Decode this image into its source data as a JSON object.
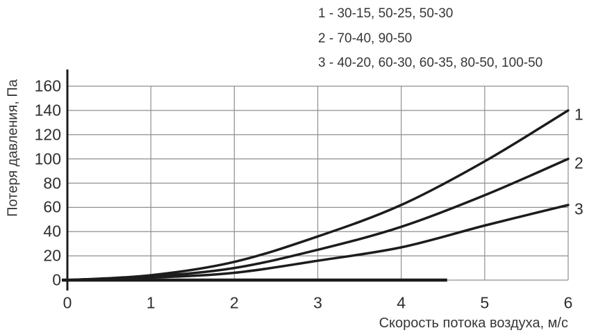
{
  "chart_data": {
    "type": "line",
    "title": "",
    "xlabel": "Скорость потока воздуха, м/с",
    "ylabel": "Потеря давления, Па",
    "xlim": [
      0,
      6
    ],
    "ylim": [
      0,
      160
    ],
    "x_ticks": [
      "0",
      "1",
      "2",
      "3",
      "4",
      "5",
      "6"
    ],
    "y_ticks": [
      "0",
      "20",
      "40",
      "60",
      "80",
      "100",
      "120",
      "140",
      "160"
    ],
    "grid": true,
    "legend_position": "top-right",
    "x": [
      0,
      1,
      2,
      3,
      4,
      5,
      6
    ],
    "series": [
      {
        "name": "1",
        "label": "1 - 30-15, 50-25, 50-30",
        "values": [
          0,
          4,
          15,
          36,
          62,
          98,
          140
        ]
      },
      {
        "name": "2",
        "label": "2 - 70-40, 90-50",
        "values": [
          0,
          3,
          10,
          25,
          44,
          70,
          100
        ]
      },
      {
        "name": "3",
        "label": "3 - 40-20, 60-30, 60-35, 80-50, 100-50",
        "values": [
          0,
          2,
          6,
          16,
          27,
          45,
          62
        ]
      }
    ],
    "x_axis_thick_segment": [
      0,
      4.55
    ],
    "colors": {
      "curve": "#1c1c1c",
      "grid": "#8f8f8f",
      "axis": "#1c1c1c",
      "text": "#333333",
      "background": "#ffffff"
    }
  }
}
